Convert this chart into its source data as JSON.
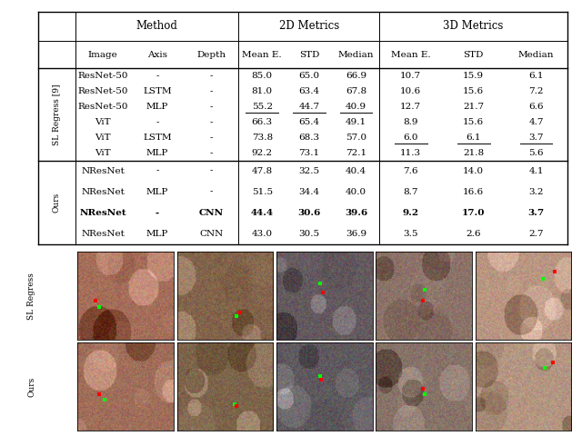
{
  "table": {
    "col_headers_row1": [
      "Method",
      "2D Metrics",
      "3D Metrics"
    ],
    "col_headers_row2": [
      "Image",
      "Axis",
      "Depth",
      "Mean E.",
      "STD",
      "Median",
      "Mean E.",
      "STD",
      "Median"
    ],
    "row_group1_label": "SL Regress [9]",
    "row_group2_label": "Ours",
    "rows": [
      [
        "ResNet-50",
        "-",
        "-",
        "85.0",
        "65.0",
        "66.9",
        "10.7",
        "15.9",
        "6.1"
      ],
      [
        "ResNet-50",
        "LSTM",
        "-",
        "81.0",
        "63.4",
        "67.8",
        "10.6",
        "15.6",
        "7.2"
      ],
      [
        "ResNet-50",
        "MLP",
        "-",
        "55.2",
        "44.7",
        "40.9",
        "12.7",
        "21.7",
        "6.6"
      ],
      [
        "ViT",
        "-",
        "-",
        "66.3",
        "65.4",
        "49.1",
        "8.9",
        "15.6",
        "4.7"
      ],
      [
        "ViT",
        "LSTM",
        "-",
        "73.8",
        "68.3",
        "57.0",
        "6.0",
        "6.1",
        "3.7"
      ],
      [
        "ViT",
        "MLP",
        "-",
        "92.2",
        "73.1",
        "72.1",
        "11.3",
        "21.8",
        "5.6"
      ],
      [
        "NResNet",
        "-",
        "-",
        "47.8",
        "32.5",
        "40.4",
        "7.6",
        "14.0",
        "4.1"
      ],
      [
        "NResNet",
        "MLP",
        "-",
        "51.5",
        "34.4",
        "40.0",
        "8.7",
        "16.6",
        "3.2"
      ],
      [
        "NResNet",
        "-",
        "CNN",
        "44.4",
        "30.6",
        "39.6",
        "9.2",
        "17.0",
        "3.7"
      ],
      [
        "NResNet",
        "MLP",
        "CNN",
        "43.0",
        "30.5",
        "36.9",
        "3.5",
        "2.6",
        "2.7"
      ]
    ],
    "underline_row2_cols": [
      3,
      4,
      5
    ],
    "underline_row4_cols": [
      6,
      7,
      8
    ],
    "bold_row": 9,
    "group1_count": 6,
    "group2_count": 4
  },
  "image_section": {
    "row_labels": [
      "SL Regress",
      "Ours"
    ],
    "n_cols": 5,
    "n_rows": 2,
    "img_colors": [
      [
        "#b08878",
        "#706858",
        "#504858",
        "#808898",
        "#c0a898"
      ],
      [
        "#b08878",
        "#706858",
        "#504858",
        "#808898",
        "#c0a898"
      ]
    ],
    "dot_positions_row0": [
      {
        "green": [
          0.22,
          0.62
        ],
        "red": [
          0.18,
          0.55
        ]
      },
      {
        "green": [
          0.62,
          0.72
        ],
        "red": [
          0.65,
          0.68
        ]
      },
      {
        "green": [
          0.45,
          0.35
        ],
        "red": [
          0.48,
          0.45
        ]
      },
      {
        "green": [
          0.5,
          0.42
        ],
        "red": [
          0.48,
          0.55
        ]
      },
      {
        "green": [
          0.7,
          0.3
        ],
        "red": [
          0.82,
          0.22
        ]
      }
    ],
    "dot_positions_row1": [
      {
        "green": [
          0.28,
          0.65
        ],
        "red": [
          0.22,
          0.58
        ]
      },
      {
        "green": [
          0.6,
          0.7
        ],
        "red": [
          0.62,
          0.72
        ]
      },
      {
        "green": [
          0.45,
          0.38
        ],
        "red": [
          0.46,
          0.42
        ]
      },
      {
        "green": [
          0.5,
          0.58
        ],
        "red": [
          0.48,
          0.52
        ]
      },
      {
        "green": [
          0.72,
          0.28
        ],
        "red": [
          0.8,
          0.22
        ]
      }
    ]
  }
}
